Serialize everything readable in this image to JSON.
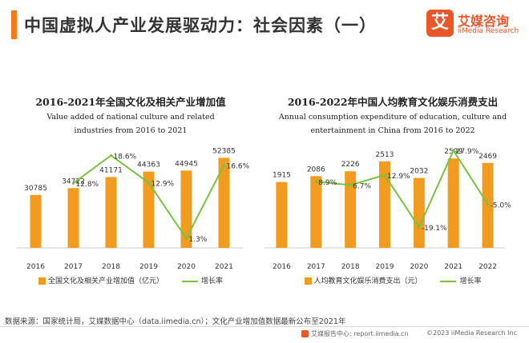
{
  "page": {
    "title": "中国虚拟人产业发展驱动力：社会因素（一）"
  },
  "logo": {
    "mark": "艾",
    "name_cn": "艾媒咨询",
    "name_en": "iiMedia Research"
  },
  "chart_data": [
    {
      "type": "bar",
      "title": "2016-2021年全国文化及相关产业增加值",
      "subtitle_lines": [
        "Value added of national culture and related",
        "industries from 2016 to 2021"
      ],
      "categories": [
        "2016",
        "2017",
        "2018",
        "2019",
        "2020",
        "2021"
      ],
      "series": [
        {
          "name": "全国文化及相关产业增加值（亿元）",
          "kind": "bar",
          "values": [
            30785,
            34722,
            41171,
            44363,
            44945,
            52385
          ],
          "labels": [
            "30785",
            "34722",
            "41171",
            "44363",
            "44945",
            "52385"
          ]
        },
        {
          "name": "增长率",
          "kind": "line",
          "values": [
            null,
            12.8,
            18.6,
            12.9,
            1.3,
            16.6
          ],
          "labels": [
            "",
            "12.8%",
            "18.6%",
            "12.9%",
            "1.3%",
            "16.6%"
          ]
        }
      ],
      "grid": false,
      "legend_position": "bottom",
      "colors": {
        "bar": "#f29c1f",
        "line": "#79c142"
      }
    },
    {
      "type": "bar",
      "title": "2016-2022年中国人均教育文化娱乐消费支出",
      "subtitle_lines": [
        "Annual consumption expenditure of education, culture and",
        "entertainment in China from 2016 to 2022"
      ],
      "categories": [
        "2016",
        "2017",
        "2018",
        "2019",
        "2020",
        "2021",
        "2022"
      ],
      "series": [
        {
          "name": "人均教育文化娱乐消费支出（元）",
          "kind": "bar",
          "values": [
            1915,
            2086,
            2226,
            2513,
            2032,
            2599,
            2469
          ],
          "labels": [
            "1915",
            "2086",
            "2226",
            "2513",
            "2032",
            "2599",
            "2469"
          ]
        },
        {
          "name": "增长率",
          "kind": "line",
          "values": [
            null,
            8.9,
            6.7,
            12.9,
            -19.1,
            27.9,
            -5.0
          ],
          "labels": [
            "",
            "8.9%",
            "6.7%",
            "12.9%",
            "-19.1%",
            "27.9%",
            "-5.0%"
          ]
        }
      ],
      "grid": false,
      "legend_position": "bottom",
      "colors": {
        "bar": "#f29c1f",
        "line": "#79c142"
      }
    }
  ],
  "footer": {
    "source": "数据来源：国家统计局，艾媒数据中心（data.iimedia.cn）；文化产业增加值数据最新公布至2021年",
    "report_center": "艾媒报告中心: report.iimedia.cn",
    "copyright": "©2023   iiMedia Research  Inc"
  }
}
